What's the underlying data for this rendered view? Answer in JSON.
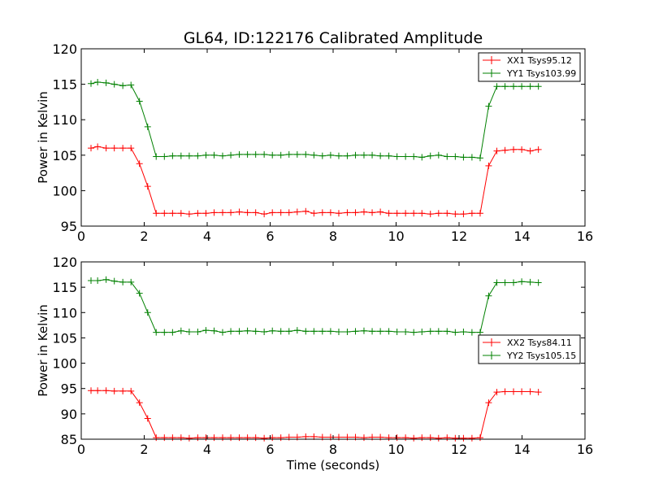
{
  "figure": {
    "title": "GL64, ID:122176 Calibrated Amplitude",
    "xlabel": "Time (seconds)"
  },
  "chart_data": [
    {
      "type": "line",
      "title": "GL64, ID:122176 Calibrated Amplitude",
      "xlabel": "",
      "ylabel": "Power in Kelvin",
      "xlim": [
        0,
        16
      ],
      "ylim": [
        95,
        120
      ],
      "xticks": [
        0,
        2,
        4,
        6,
        8,
        10,
        12,
        14,
        16
      ],
      "yticks": [
        95,
        100,
        105,
        110,
        115,
        120
      ],
      "grid": false,
      "legend_position": "top-right",
      "x": [
        0.31,
        0.52,
        0.79,
        1.05,
        1.32,
        1.58,
        1.85,
        2.11,
        2.38,
        2.64,
        2.9,
        3.17,
        3.43,
        3.7,
        3.96,
        4.22,
        4.49,
        4.75,
        5.02,
        5.28,
        5.54,
        5.81,
        6.07,
        6.34,
        6.6,
        6.86,
        7.13,
        7.39,
        7.66,
        7.92,
        8.18,
        8.45,
        8.71,
        8.98,
        9.24,
        9.5,
        9.77,
        10.03,
        10.3,
        10.56,
        10.82,
        11.09,
        11.35,
        11.62,
        11.88,
        12.14,
        12.41,
        12.67,
        12.94,
        13.2,
        13.46,
        13.73,
        13.99,
        14.26,
        14.52
      ],
      "series": [
        {
          "name": "XX1 Tsys95.12",
          "color": "#ff0000",
          "values": [
            106.0,
            106.2,
            106.0,
            106.0,
            106.0,
            106.0,
            103.8,
            100.6,
            96.8,
            96.8,
            96.8,
            96.8,
            96.7,
            96.8,
            96.8,
            96.9,
            96.9,
            96.9,
            97.0,
            96.9,
            96.9,
            96.7,
            96.9,
            96.9,
            96.9,
            97.0,
            97.1,
            96.8,
            96.9,
            96.9,
            96.8,
            96.9,
            96.9,
            97.0,
            96.9,
            97.0,
            96.8,
            96.8,
            96.8,
            96.8,
            96.8,
            96.7,
            96.8,
            96.8,
            96.7,
            96.7,
            96.8,
            96.8,
            103.5,
            105.6,
            105.7,
            105.8,
            105.8,
            105.6,
            105.8
          ]
        },
        {
          "name": "YY1 Tsys103.99",
          "color": "#008000",
          "values": [
            115.1,
            115.3,
            115.2,
            115.0,
            114.8,
            114.9,
            112.6,
            109.0,
            104.8,
            104.8,
            104.9,
            104.9,
            104.9,
            104.9,
            105.0,
            105.0,
            104.9,
            105.0,
            105.1,
            105.1,
            105.1,
            105.1,
            105.0,
            105.0,
            105.1,
            105.1,
            105.1,
            105.0,
            104.9,
            105.0,
            104.9,
            104.9,
            105.0,
            105.0,
            105.0,
            104.9,
            104.9,
            104.8,
            104.8,
            104.8,
            104.7,
            104.9,
            105.0,
            104.8,
            104.8,
            104.7,
            104.7,
            104.6,
            111.9,
            114.7,
            114.7,
            114.7,
            114.7,
            114.7,
            114.7
          ]
        }
      ]
    },
    {
      "type": "line",
      "title": "",
      "xlabel": "Time (seconds)",
      "ylabel": "Power in Kelvin",
      "xlim": [
        0,
        16
      ],
      "ylim": [
        85,
        120
      ],
      "xticks": [
        0,
        2,
        4,
        6,
        8,
        10,
        12,
        14,
        16
      ],
      "yticks": [
        85,
        90,
        95,
        100,
        105,
        110,
        115,
        120
      ],
      "grid": false,
      "legend_position": "center-right",
      "x": [
        0.31,
        0.52,
        0.79,
        1.05,
        1.32,
        1.58,
        1.85,
        2.11,
        2.38,
        2.64,
        2.9,
        3.17,
        3.43,
        3.7,
        3.96,
        4.22,
        4.49,
        4.75,
        5.02,
        5.28,
        5.54,
        5.81,
        6.07,
        6.34,
        6.6,
        6.86,
        7.13,
        7.39,
        7.66,
        7.92,
        8.18,
        8.45,
        8.71,
        8.98,
        9.24,
        9.5,
        9.77,
        10.03,
        10.3,
        10.56,
        10.82,
        11.09,
        11.35,
        11.62,
        11.88,
        12.14,
        12.41,
        12.67,
        12.94,
        13.2,
        13.46,
        13.73,
        13.99,
        14.26,
        14.52
      ],
      "series": [
        {
          "name": "XX2 Tsys84.11",
          "color": "#ff0000",
          "values": [
            94.6,
            94.6,
            94.6,
            94.5,
            94.5,
            94.5,
            92.2,
            89.1,
            85.3,
            85.3,
            85.3,
            85.3,
            85.2,
            85.3,
            85.3,
            85.3,
            85.3,
            85.3,
            85.3,
            85.3,
            85.3,
            85.2,
            85.3,
            85.3,
            85.4,
            85.4,
            85.5,
            85.5,
            85.4,
            85.4,
            85.4,
            85.4,
            85.4,
            85.3,
            85.4,
            85.4,
            85.3,
            85.3,
            85.3,
            85.2,
            85.3,
            85.3,
            85.2,
            85.3,
            85.2,
            85.2,
            85.2,
            85.3,
            92.2,
            94.3,
            94.4,
            94.4,
            94.4,
            94.4,
            94.3
          ]
        },
        {
          "name": "YY2 Tsys105.15",
          "color": "#008000",
          "values": [
            116.3,
            116.3,
            116.5,
            116.2,
            116.0,
            116.0,
            113.8,
            110.0,
            106.1,
            106.1,
            106.1,
            106.4,
            106.2,
            106.2,
            106.5,
            106.4,
            106.1,
            106.3,
            106.3,
            106.4,
            106.3,
            106.2,
            106.4,
            106.3,
            106.3,
            106.5,
            106.3,
            106.3,
            106.3,
            106.3,
            106.2,
            106.2,
            106.3,
            106.4,
            106.3,
            106.3,
            106.3,
            106.2,
            106.2,
            106.1,
            106.2,
            106.3,
            106.3,
            106.3,
            106.1,
            106.2,
            106.1,
            106.1,
            113.3,
            115.9,
            115.9,
            115.9,
            116.1,
            116.0,
            115.9
          ]
        }
      ]
    }
  ]
}
